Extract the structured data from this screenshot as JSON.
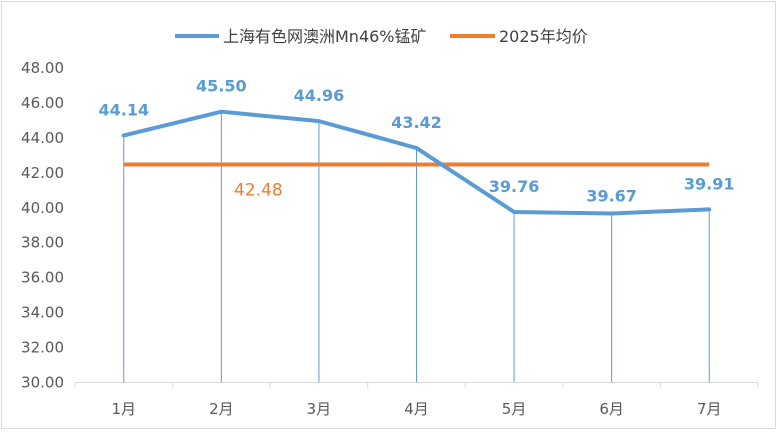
{
  "chart_data": {
    "type": "line",
    "categories": [
      "1月",
      "2月",
      "3月",
      "4月",
      "5月",
      "6月",
      "7月"
    ],
    "series": [
      {
        "name": "上海有色网澳洲Mn46%锰矿",
        "values": [
          44.14,
          45.5,
          44.96,
          43.42,
          39.76,
          39.67,
          39.91
        ],
        "labels": [
          "44.14",
          "45.50",
          "44.96",
          "43.42",
          "39.76",
          "39.67",
          "39.91"
        ],
        "color": "#5b9bd5"
      },
      {
        "name": "2025年均价",
        "values": [
          42.48,
          42.48,
          42.48,
          42.48,
          42.48,
          42.48,
          42.48
        ],
        "labels": [
          "42.48"
        ],
        "color": "#ed7d31"
      }
    ],
    "y_ticks": [
      "30.00",
      "32.00",
      "34.00",
      "36.00",
      "38.00",
      "40.00",
      "42.00",
      "44.00",
      "46.00",
      "48.00"
    ],
    "ylim": [
      30,
      48
    ],
    "legend": "top-center",
    "grid": false,
    "drop_lines": true
  }
}
